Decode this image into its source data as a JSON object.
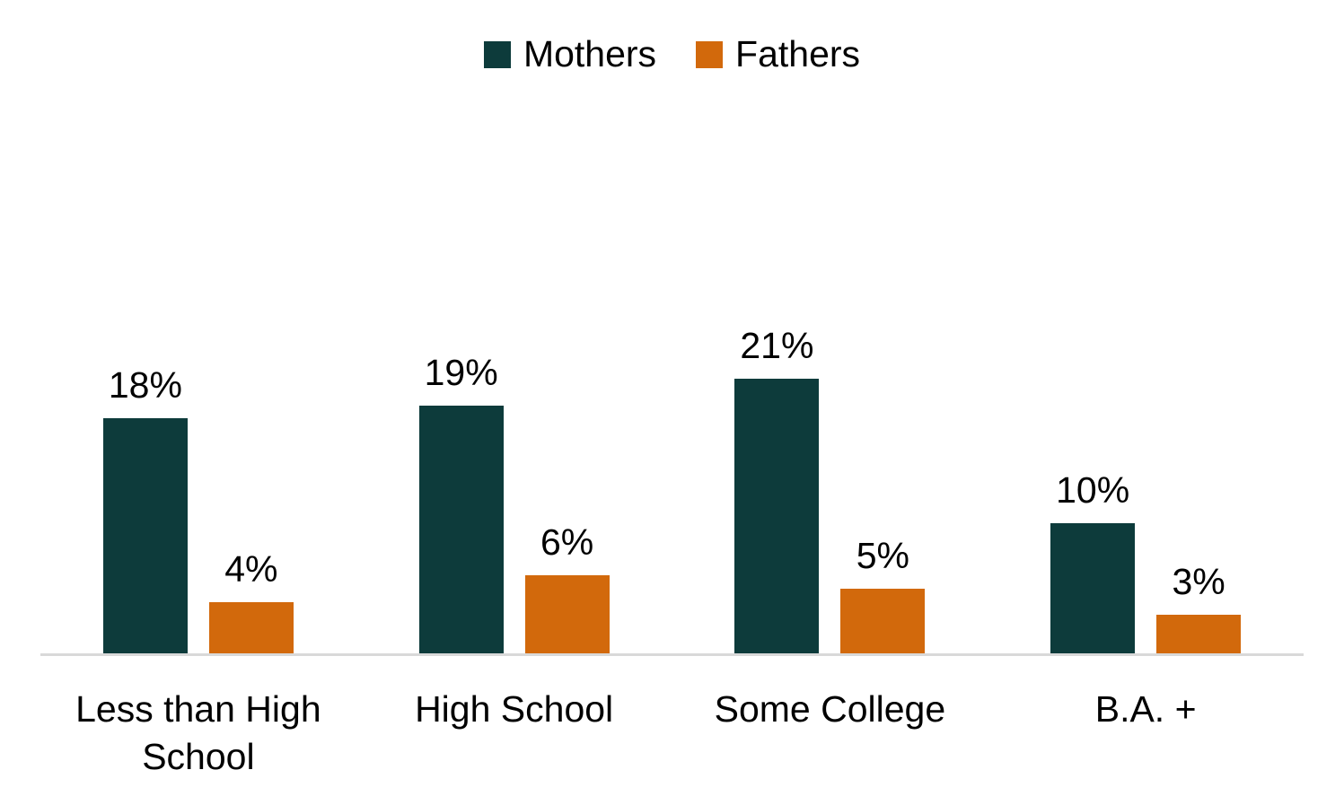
{
  "chart_data": {
    "type": "bar",
    "title": "",
    "categories": [
      "Less than High School",
      "High School",
      "Some College",
      "B.A. +"
    ],
    "series": [
      {
        "name": "Mothers",
        "color": "#0d3b3b",
        "values": [
          18,
          19,
          21,
          10
        ],
        "labels": [
          "18%",
          "19%",
          "21%",
          "10%"
        ]
      },
      {
        "name": "Fathers",
        "color": "#d2690c",
        "values": [
          4,
          6,
          5,
          3
        ],
        "labels": [
          "4%",
          "6%",
          "5%",
          "3%"
        ]
      }
    ],
    "unit": "%",
    "ylim": [
      0,
      25
    ],
    "grid": false,
    "legend_position": "top-center",
    "axis_line_color": "#d9d9d9",
    "text_color": "#000000",
    "background": "#ffffff"
  }
}
